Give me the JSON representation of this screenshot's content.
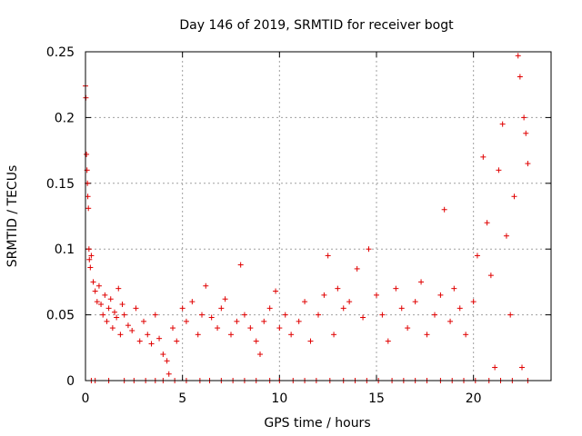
{
  "chart_data": {
    "type": "scatter",
    "title": "Day 146 of 2019, SRMTID for receiver bogt",
    "xlabel": "GPS time / hours",
    "ylabel": "SRMTID / TECUs",
    "xlim": [
      0,
      24
    ],
    "ylim": [
      0,
      0.25
    ],
    "xticks": [
      0,
      5,
      10,
      15,
      20
    ],
    "xtick_labels": [
      "0",
      "5",
      "10",
      "15",
      "20"
    ],
    "yticks": [
      0,
      0.05,
      0.1,
      0.15,
      0.2,
      0.25
    ],
    "ytick_labels": [
      "0",
      "0.05",
      "0.1",
      "0.15",
      "0.2",
      "0.25"
    ],
    "grid": true,
    "marker": "+",
    "series": [
      {
        "name": "SRMTID",
        "color": "#e00000",
        "points": [
          [
            0.0,
            0.224
          ],
          [
            0.02,
            0.215
          ],
          [
            0.05,
            0.172
          ],
          [
            0.08,
            0.16
          ],
          [
            0.1,
            0.15
          ],
          [
            0.12,
            0.14
          ],
          [
            0.15,
            0.131
          ],
          [
            0.18,
            0.1
          ],
          [
            0.2,
            0.092
          ],
          [
            0.25,
            0.086
          ],
          [
            0.3,
            0.095
          ],
          [
            0.4,
            0.075
          ],
          [
            0.5,
            0.068
          ],
          [
            0.6,
            0.06
          ],
          [
            0.7,
            0.072
          ],
          [
            0.8,
            0.058
          ],
          [
            0.9,
            0.05
          ],
          [
            1.0,
            0.065
          ],
          [
            1.1,
            0.045
          ],
          [
            1.2,
            0.055
          ],
          [
            1.3,
            0.062
          ],
          [
            1.4,
            0.04
          ],
          [
            1.5,
            0.052
          ],
          [
            1.6,
            0.048
          ],
          [
            1.7,
            0.07
          ],
          [
            1.8,
            0.035
          ],
          [
            1.9,
            0.058
          ],
          [
            2.0,
            0.05
          ],
          [
            2.2,
            0.042
          ],
          [
            2.4,
            0.038
          ],
          [
            2.6,
            0.055
          ],
          [
            2.8,
            0.03
          ],
          [
            3.0,
            0.045
          ],
          [
            3.2,
            0.035
          ],
          [
            3.4,
            0.028
          ],
          [
            3.6,
            0.05
          ],
          [
            3.8,
            0.032
          ],
          [
            4.0,
            0.02
          ],
          [
            4.2,
            0.015
          ],
          [
            4.3,
            0.005
          ],
          [
            4.5,
            0.04
          ],
          [
            4.7,
            0.03
          ],
          [
            5.0,
            0.055
          ],
          [
            5.2,
            0.045
          ],
          [
            5.5,
            0.06
          ],
          [
            5.8,
            0.035
          ],
          [
            6.0,
            0.05
          ],
          [
            6.2,
            0.072
          ],
          [
            6.5,
            0.048
          ],
          [
            6.8,
            0.04
          ],
          [
            7.0,
            0.055
          ],
          [
            7.2,
            0.062
          ],
          [
            7.5,
            0.035
          ],
          [
            7.8,
            0.045
          ],
          [
            8.0,
            0.088
          ],
          [
            8.2,
            0.05
          ],
          [
            8.5,
            0.04
          ],
          [
            8.8,
            0.03
          ],
          [
            9.0,
            0.02
          ],
          [
            9.2,
            0.045
          ],
          [
            9.5,
            0.055
          ],
          [
            9.8,
            0.068
          ],
          [
            10.0,
            0.04
          ],
          [
            10.3,
            0.05
          ],
          [
            10.6,
            0.035
          ],
          [
            11.0,
            0.045
          ],
          [
            11.3,
            0.06
          ],
          [
            11.6,
            0.03
          ],
          [
            12.0,
            0.05
          ],
          [
            12.3,
            0.065
          ],
          [
            12.5,
            0.095
          ],
          [
            12.8,
            0.035
          ],
          [
            13.0,
            0.07
          ],
          [
            13.3,
            0.055
          ],
          [
            13.6,
            0.06
          ],
          [
            14.0,
            0.085
          ],
          [
            14.3,
            0.048
          ],
          [
            14.6,
            0.1
          ],
          [
            15.0,
            0.065
          ],
          [
            15.3,
            0.05
          ],
          [
            15.6,
            0.03
          ],
          [
            16.0,
            0.07
          ],
          [
            16.3,
            0.055
          ],
          [
            16.6,
            0.04
          ],
          [
            17.0,
            0.06
          ],
          [
            17.3,
            0.075
          ],
          [
            17.6,
            0.035
          ],
          [
            18.0,
            0.05
          ],
          [
            18.3,
            0.065
          ],
          [
            18.5,
            0.13
          ],
          [
            18.8,
            0.045
          ],
          [
            19.0,
            0.07
          ],
          [
            19.3,
            0.055
          ],
          [
            19.6,
            0.035
          ],
          [
            20.0,
            0.06
          ],
          [
            20.2,
            0.095
          ],
          [
            20.5,
            0.17
          ],
          [
            20.7,
            0.12
          ],
          [
            20.9,
            0.08
          ],
          [
            21.1,
            0.01
          ],
          [
            21.3,
            0.16
          ],
          [
            21.5,
            0.195
          ],
          [
            21.7,
            0.11
          ],
          [
            21.9,
            0.05
          ],
          [
            22.1,
            0.14
          ],
          [
            22.3,
            0.247
          ],
          [
            22.4,
            0.231
          ],
          [
            22.5,
            0.01
          ],
          [
            22.6,
            0.2
          ],
          [
            22.7,
            0.188
          ],
          [
            22.8,
            0.165
          ]
        ],
        "zero_points_x": [
          0.3,
          0.5,
          1.2,
          2.0,
          2.5,
          3.1,
          3.6,
          4.0,
          4.6,
          5.2,
          5.9,
          6.4,
          7.0,
          7.6,
          8.2,
          8.8,
          9.5,
          10.0,
          10.7,
          11.3,
          11.9,
          12.6,
          13.3,
          13.9,
          14.5,
          15.1,
          15.8,
          16.4,
          17.0,
          17.6,
          18.3,
          18.9,
          19.5,
          20.1,
          20.8,
          21.4,
          22.0,
          22.8
        ]
      }
    ]
  }
}
